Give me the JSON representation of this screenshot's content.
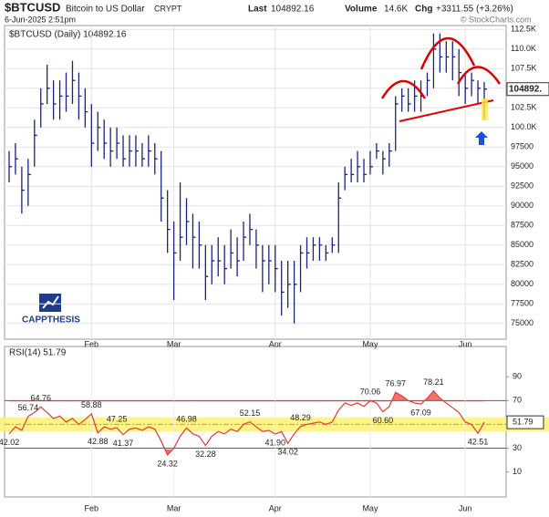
{
  "header": {
    "symbol": "$BTCUSD",
    "name": "Bitcoin to US Dollar",
    "exchange": "CRYPT",
    "date": "6-Jun-2025 2:51pm",
    "last_label": "Last",
    "last": "104892.16",
    "volume_label": "Volume",
    "volume": "14.6K",
    "chg_label": "Chg",
    "chg": "+3311.55 (+3.26%)",
    "copyright": "© StockCharts.com",
    "logo": "CAPPTHESIS"
  },
  "chart_data": [
    {
      "type": "ohlc",
      "legend": "$BTCUSD (Daily) 104892.16",
      "price_badge": "104892.",
      "color": "#1a237e",
      "grid": true,
      "categories": [
        null,
        null,
        null,
        null,
        null,
        null,
        null,
        null,
        null,
        null,
        null,
        null,
        null,
        "Feb",
        null,
        null,
        null,
        null,
        null,
        null,
        null,
        null,
        null,
        null,
        null,
        null,
        "Mar",
        null,
        null,
        null,
        null,
        null,
        null,
        null,
        null,
        null,
        null,
        null,
        null,
        null,
        null,
        null,
        "Apr",
        null,
        null,
        null,
        null,
        null,
        null,
        null,
        null,
        null,
        null,
        null,
        null,
        null,
        null,
        "May",
        null,
        null,
        null,
        null,
        null,
        null,
        null,
        null,
        null,
        null,
        null,
        null,
        null,
        null,
        "Jun",
        null,
        null,
        null
      ],
      "high": [
        97000,
        98000,
        95000,
        96000,
        101000,
        105000,
        108000,
        106000,
        106000,
        107000,
        108500,
        107000,
        105000,
        103000,
        102000,
        101000,
        100000,
        100000,
        99000,
        99000,
        99000,
        98000,
        99000,
        98000,
        97000,
        92000,
        88000,
        93000,
        91000,
        89000,
        88000,
        85000,
        85000,
        86000,
        85000,
        87000,
        86000,
        88000,
        89000,
        87000,
        85000,
        85000,
        85000,
        83000,
        83000,
        83000,
        85000,
        86000,
        86000,
        86000,
        85000,
        86000,
        93000,
        95000,
        96000,
        97000,
        96000,
        97000,
        98000,
        97000,
        98000,
        104000,
        105000,
        105000,
        106000,
        106000,
        107000,
        112000,
        112000,
        111000,
        111000,
        110000,
        107000,
        107000,
        106000,
        105800
      ],
      "low": [
        93000,
        94000,
        89000,
        90000,
        95000,
        100000,
        103000,
        101000,
        101000,
        102000,
        103000,
        101000,
        100000,
        95000,
        97000,
        96000,
        95000,
        96000,
        95000,
        95000,
        95000,
        95000,
        95000,
        94000,
        88000,
        84000,
        78000,
        83000,
        85000,
        82000,
        82000,
        78000,
        80000,
        81000,
        80000,
        82000,
        81000,
        83000,
        85000,
        82000,
        79000,
        80000,
        79000,
        76000,
        77000,
        75000,
        79000,
        82000,
        83000,
        83000,
        83000,
        84000,
        84000,
        92000,
        93000,
        93000,
        93000,
        94000,
        96000,
        94000,
        95000,
        97000,
        102000,
        102000,
        102000,
        102000,
        104000,
        105000,
        107000,
        107000,
        106000,
        104000,
        103000,
        104000,
        103000,
        101000
      ],
      "close": [
        95000,
        96000,
        92000,
        94000,
        99000,
        103000,
        105000,
        103000,
        104000,
        104000,
        106000,
        104000,
        102000,
        98000,
        100000,
        98000,
        97000,
        98000,
        96000,
        97000,
        97000,
        96000,
        97000,
        96000,
        91000,
        87000,
        84000,
        86000,
        88000,
        86000,
        85000,
        81000,
        83000,
        83000,
        82000,
        84000,
        83000,
        86000,
        87000,
        85000,
        83000,
        83000,
        82000,
        79000,
        80000,
        80000,
        84000,
        84000,
        85000,
        85000,
        84000,
        85000,
        91000,
        94000,
        94000,
        95000,
        94000,
        95000,
        97000,
        96000,
        97000,
        103000,
        104000,
        103000,
        104000,
        104000,
        106000,
        110000,
        109000,
        109000,
        109000,
        107000,
        105000,
        106000,
        105000,
        104892.16
      ],
      "ylim": [
        73000,
        113000
      ],
      "yticks": [
        {
          "value": 112500,
          "label": "112.5K"
        },
        {
          "value": 110000,
          "label": "110.0K"
        },
        {
          "value": 107500,
          "label": "107.5K"
        },
        {
          "value": 105000,
          "label": "105.0K"
        },
        {
          "value": 102500,
          "label": "102.5K"
        },
        {
          "value": 100000,
          "label": "100.0K"
        },
        97500,
        95000,
        92500,
        90000,
        87500,
        85000,
        82500,
        80000,
        77500,
        75000
      ]
    },
    {
      "type": "line",
      "legend": "RSI(14) 51.79",
      "rsi_badge": "51.79",
      "color": "#e53935",
      "reference_lines": [
        70,
        30
      ],
      "reference_color": "#d32f2f",
      "highlight_band": [
        44,
        56
      ],
      "highlight_color": "#fff176",
      "midline": 50,
      "categories": [
        null,
        null,
        null,
        null,
        null,
        null,
        null,
        null,
        null,
        null,
        null,
        null,
        null,
        "Feb",
        null,
        null,
        null,
        null,
        null,
        null,
        null,
        null,
        null,
        null,
        null,
        null,
        "Mar",
        null,
        null,
        null,
        null,
        null,
        null,
        null,
        null,
        null,
        null,
        null,
        null,
        null,
        null,
        null,
        "Apr",
        null,
        null,
        null,
        null,
        null,
        null,
        null,
        null,
        null,
        null,
        null,
        null,
        null,
        null,
        "May",
        null,
        null,
        null,
        null,
        null,
        null,
        null,
        null,
        null,
        null,
        null,
        null,
        null,
        null,
        "Jun",
        null,
        null,
        null
      ],
      "values": [
        42.02,
        48,
        45,
        56.74,
        60,
        64.76,
        60,
        55,
        57,
        52,
        55,
        50,
        54,
        58.88,
        42.88,
        48,
        46,
        47.25,
        41.37,
        46,
        47,
        45,
        48,
        46,
        36,
        24.32,
        30,
        40,
        46.98,
        42,
        40,
        32.28,
        40,
        44,
        42,
        46,
        44,
        50,
        52.15,
        48,
        44,
        45,
        41.9,
        44,
        34.02,
        42,
        48.29,
        50,
        51,
        52,
        50,
        52,
        62,
        68,
        66,
        68,
        65,
        70.06,
        68,
        60.6,
        65,
        76.97,
        74,
        70,
        68,
        67.09,
        72,
        78.21,
        72,
        68,
        64,
        60,
        52,
        50,
        42.51,
        51.79
      ],
      "value_labels": [
        "42.02",
        null,
        null,
        "56.74",
        null,
        "64.76",
        null,
        null,
        null,
        null,
        null,
        null,
        null,
        "58.88",
        "42.88",
        null,
        null,
        "47.25",
        "41.37",
        null,
        null,
        null,
        null,
        null,
        null,
        "24.32",
        null,
        null,
        "46.98",
        null,
        null,
        "32.28",
        null,
        null,
        null,
        null,
        null,
        null,
        "52.15",
        null,
        null,
        null,
        "41.90",
        null,
        "34.02",
        null,
        "48.29",
        null,
        null,
        null,
        null,
        null,
        null,
        null,
        null,
        null,
        null,
        "70.06",
        null,
        "60.60",
        null,
        "76.97",
        null,
        null,
        null,
        "67.09",
        null,
        "78.21",
        null,
        null,
        null,
        null,
        null,
        null,
        "42.51",
        null
      ],
      "ylim": [
        -11,
        115.5
      ],
      "yticks": [
        90,
        70,
        30,
        10
      ]
    }
  ]
}
